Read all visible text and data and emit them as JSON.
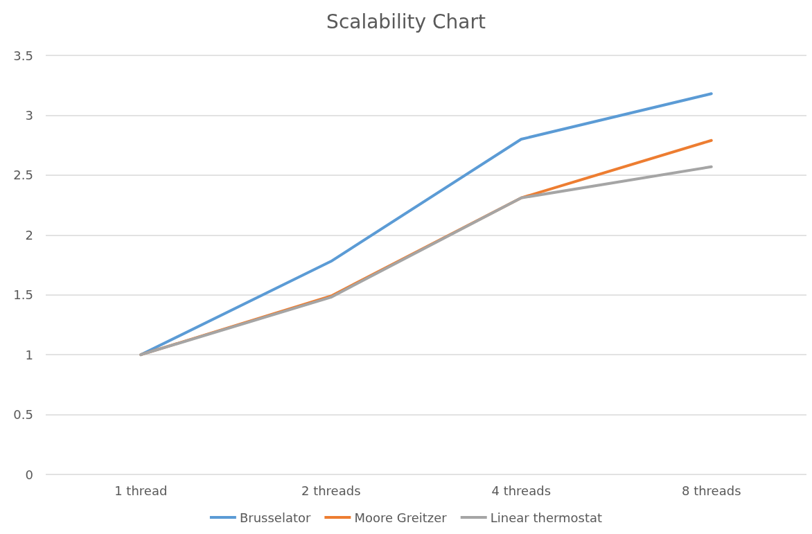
{
  "chart_data": {
    "type": "line",
    "title": "Scalability Chart",
    "categories": [
      "1 thread",
      "2 threads",
      "4 threads",
      "8 threads"
    ],
    "series": [
      {
        "name": "Brusselator",
        "color": "#5b9bd5",
        "values": [
          1,
          1.78,
          2.8,
          3.18
        ]
      },
      {
        "name": "Moore Greitzer",
        "color": "#ed7d31",
        "values": [
          1,
          1.49,
          2.31,
          2.79
        ]
      },
      {
        "name": "Linear thermostat",
        "color": "#a5a5a5",
        "values": [
          1,
          1.48,
          2.31,
          2.57
        ]
      }
    ],
    "ylim": [
      0,
      3.5
    ],
    "yticks": [
      0,
      0.5,
      1,
      1.5,
      2,
      2.5,
      3,
      3.5
    ],
    "grid": "y",
    "legend": "bottom",
    "marker": "none",
    "line_style": "solid"
  }
}
